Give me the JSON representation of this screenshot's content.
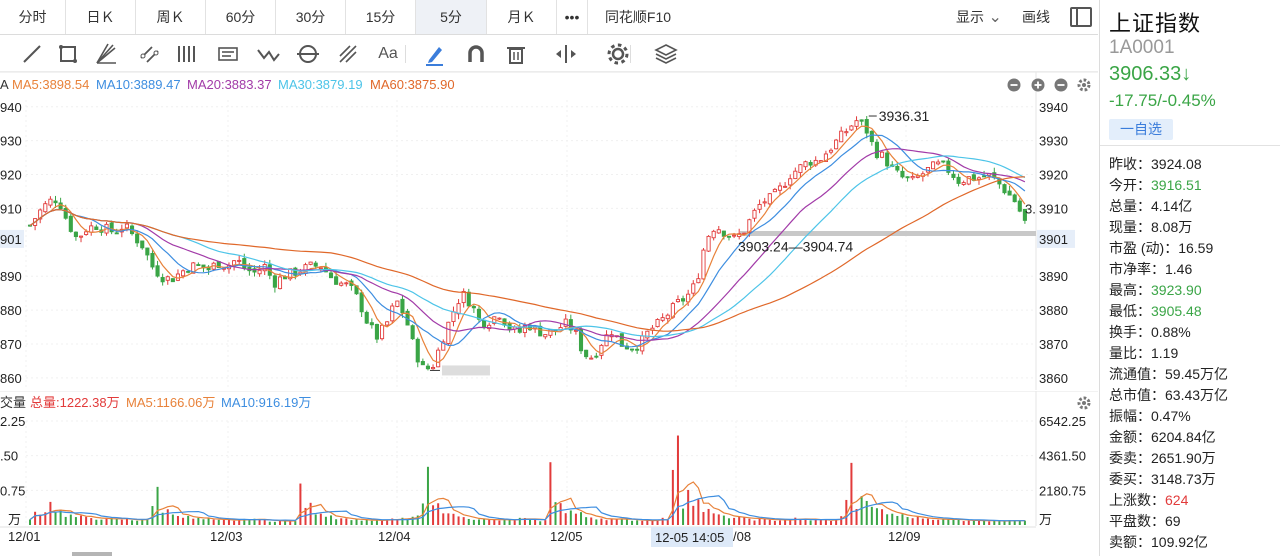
{
  "period_tabs": [
    {
      "label": "分时",
      "active": false
    },
    {
      "label": "日Ｋ",
      "active": false
    },
    {
      "label": "周Ｋ",
      "active": false
    },
    {
      "label": "60分",
      "active": false
    },
    {
      "label": "30分",
      "active": false
    },
    {
      "label": "15分",
      "active": false
    },
    {
      "label": "5分",
      "active": true
    },
    {
      "label": "月Ｋ",
      "active": false
    },
    {
      "label": "•••",
      "active": false
    },
    {
      "label": "同花顺F10",
      "active": false
    }
  ],
  "display_menu": {
    "label": "显示",
    "chevron": "chevron-down-icon"
  },
  "draw_menu": {
    "label": "画线"
  },
  "toolbar_icons": [
    "line-tool-icon",
    "rectangle-tool-icon",
    "fan-tool-icon",
    "channel-tool-icon",
    "vertical-lines-icon",
    "text-box-icon",
    "wave-tool-icon",
    "circle-tool-icon",
    "gann-tool-icon",
    "text-tool-icon",
    "highlighter-icon",
    "magnet-icon",
    "trash-icon",
    "fit-width-icon",
    "settings-icon",
    "layers-icon"
  ],
  "toolbar_text_icon_label": "Aa",
  "ma_legend": [
    {
      "label": "MA5:3898.54",
      "color": "#e8823a"
    },
    {
      "label": "MA10:3889.47",
      "color": "#3e8ee0"
    },
    {
      "label": "MA20:3883.37",
      "color": "#a23ba8"
    },
    {
      "label": "MA30:3879.19",
      "color": "#4dc4e8"
    },
    {
      "label": "MA60:3875.90",
      "color": "#e0682a"
    }
  ],
  "ma_prefix": "A",
  "vol_legend": [
    {
      "label": "总量:1222.38万",
      "color": "#e23b3b"
    },
    {
      "label": "MA5:1166.06万",
      "color": "#e8823a"
    },
    {
      "label": "MA10:916.19万",
      "color": "#3e8ee0"
    }
  ],
  "vol_prefix": "交量",
  "colors": {
    "up": "#e23b3b",
    "down": "#3aa546",
    "ma5": "#e8823a",
    "ma10": "#3e8ee0",
    "ma20": "#a23ba8",
    "ma30": "#4dc4e8",
    "ma60": "#e0682a"
  },
  "annotations": {
    "high_label": "3936.31",
    "range_label": "3903.24—3904.74",
    "right_edge_label": "3.",
    "cursor_time": "12-05 14:05"
  },
  "chart_data": {
    "type": "candlestick",
    "price_axis": {
      "ticks": [
        3940,
        3930,
        3920,
        3910,
        3890,
        3880,
        3870,
        3860
      ],
      "left_ticks": [
        "940",
        "930",
        "920",
        "910",
        "901",
        "890",
        "880",
        "870",
        "860"
      ],
      "highlight": "3901",
      "ylim": [
        3857,
        3942
      ]
    },
    "x_ticks": [
      "12/01",
      "12/03",
      "12/04",
      "12/05",
      "/08",
      "12/09"
    ],
    "volume_axis": {
      "ticks": [
        "6542.25",
        "4361.50",
        "2180.75"
      ],
      "left_ticks": [
        "2.25",
        ".50",
        "0.75"
      ],
      "unit": "万",
      "ylim": [
        0,
        6542.25
      ]
    },
    "price_path": [
      3905,
      3909,
      3912,
      3913,
      3906,
      3901,
      3904,
      3905,
      3904,
      3903,
      3905,
      3902,
      3899,
      3893,
      3890,
      3889,
      3891,
      3893,
      3893,
      3892,
      3894,
      3893,
      3895,
      3892,
      3891,
      3893,
      3888,
      3890,
      3891,
      3892,
      3893,
      3893,
      3890,
      3888,
      3887,
      3883,
      3876,
      3872,
      3876,
      3883,
      3878,
      3868,
      3862,
      3864,
      3872,
      3879,
      3885,
      3882,
      3876,
      3877,
      3879,
      3875,
      3873,
      3876,
      3874,
      3873,
      3874,
      3876,
      3874,
      3867,
      3866,
      3871,
      3874,
      3870,
      3869,
      3870,
      3874,
      3876,
      3879,
      3882,
      3884,
      3888,
      3901,
      3905,
      3903,
      3901,
      3903,
      3908,
      3912,
      3913,
      3916,
      3920,
      3922,
      3924,
      3924,
      3927,
      3930,
      3933,
      3936,
      3934,
      3927,
      3925,
      3921,
      3919,
      3918,
      3920,
      3922,
      3923,
      3921,
      3918,
      3919,
      3919,
      3920,
      3918,
      3915,
      3912,
      3906
    ],
    "volume_path": [
      300,
      800,
      1700,
      900,
      600,
      500,
      450,
      400,
      380,
      360,
      350,
      300,
      400,
      2300,
      900,
      700,
      500,
      400,
      350,
      300,
      280,
      300,
      320,
      400,
      300,
      250,
      260,
      280,
      2200,
      1200,
      800,
      600,
      450,
      380,
      330,
      300,
      280,
      320,
      350,
      400,
      500,
      3100,
      1200,
      900,
      600,
      450,
      400,
      350,
      300,
      300,
      320,
      400,
      300,
      280,
      3600,
      1600,
      900,
      700,
      500,
      420,
      380,
      350,
      320,
      300,
      300,
      400,
      350,
      6542,
      2500,
      1500,
      900,
      650,
      500,
      450,
      400,
      350,
      350,
      300,
      320,
      400,
      350,
      320,
      300,
      300,
      500,
      4100,
      2000,
      1300,
      900,
      700,
      600,
      500,
      450,
      400,
      380,
      350,
      320,
      300,
      300,
      280,
      280,
      260,
      300,
      320
    ]
  },
  "quote": {
    "name": "上证指数",
    "code": "1A0001",
    "price": "3906.33↓",
    "change": "-17.75/-0.45%",
    "fav_button": "一自选",
    "stats": [
      {
        "label": "昨收：",
        "value": "3924.08",
        "tone": "normal"
      },
      {
        "label": "今开：",
        "value": "3916.51",
        "tone": "green"
      },
      {
        "label": "总量：",
        "value": "4.14亿",
        "tone": "normal"
      },
      {
        "label": "现量：",
        "value": "8.08万",
        "tone": "normal"
      },
      {
        "label": "市盈 (动)：",
        "value": "16.59",
        "tone": "normal"
      },
      {
        "label": "市净率：",
        "value": "1.46",
        "tone": "normal"
      },
      {
        "label": "最高：",
        "value": "3923.90",
        "tone": "green"
      },
      {
        "label": "最低：",
        "value": "3905.48",
        "tone": "green"
      },
      {
        "label": "换手：",
        "value": "0.88%",
        "tone": "normal"
      },
      {
        "label": "量比：",
        "value": "1.19",
        "tone": "normal"
      },
      {
        "label": "流通值：",
        "value": "59.45万亿",
        "tone": "normal"
      },
      {
        "label": "总市值：",
        "value": "63.43万亿",
        "tone": "normal"
      },
      {
        "label": "振幅：",
        "value": "0.47%",
        "tone": "normal"
      },
      {
        "label": "金额：",
        "value": "6204.84亿",
        "tone": "normal"
      },
      {
        "label": "委卖：",
        "value": "2651.90万",
        "tone": "normal"
      },
      {
        "label": "委买：",
        "value": "3148.73万",
        "tone": "normal"
      },
      {
        "label": "上涨数：",
        "value": "624",
        "tone": "red"
      },
      {
        "label": "平盘数：",
        "value": "69",
        "tone": "normal"
      },
      {
        "label": "卖额：",
        "value": "109.92亿",
        "tone": "normal"
      }
    ]
  }
}
